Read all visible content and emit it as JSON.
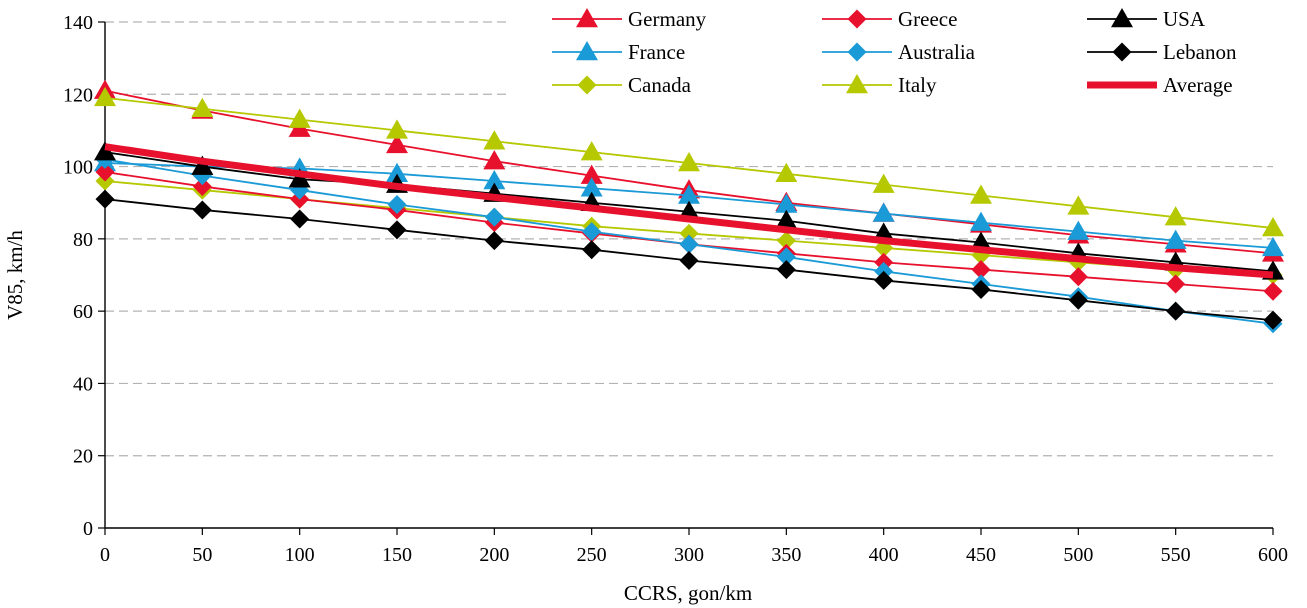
{
  "chart_data": {
    "type": "line",
    "title": "",
    "xlabel": "CCRS, gon/km",
    "ylabel": "V85, km/h",
    "xlim": [
      0,
      600
    ],
    "ylim": [
      0,
      140
    ],
    "x_ticks": [
      "0",
      "50",
      "100",
      "150",
      "200",
      "250",
      "300",
      "350",
      "400",
      "450",
      "500",
      "550",
      "600"
    ],
    "y_ticks": [
      "0",
      "20",
      "40",
      "60",
      "80",
      "100",
      "120",
      "140"
    ],
    "grid": "horizontal dashed",
    "legend_position": "top-right",
    "x": [
      0,
      50,
      100,
      150,
      200,
      250,
      300,
      350,
      400,
      450,
      500,
      550,
      600
    ],
    "series": [
      {
        "name": "Germany",
        "color": "#e8112d",
        "marker": "triangle",
        "values": [
          121,
          115.5,
          110.5,
          106,
          101.5,
          97.5,
          93.5,
          90,
          87,
          84,
          81,
          78.5,
          76
        ]
      },
      {
        "name": "France",
        "color": "#1a9ad6",
        "marker": "triangle",
        "values": [
          101,
          100,
          99.5,
          98,
          96,
          94,
          92,
          89.5,
          87,
          84.5,
          82,
          79.5,
          77.5
        ]
      },
      {
        "name": "Canada",
        "color": "#b5c800",
        "marker": "diamond",
        "values": [
          96,
          93.5,
          91,
          88.5,
          86,
          83.5,
          81.5,
          79.5,
          77.5,
          75.5,
          73.5,
          71.5,
          70
        ]
      },
      {
        "name": "Greece",
        "color": "#e8112d",
        "marker": "diamond",
        "values": [
          98.5,
          94.5,
          91,
          88,
          84.5,
          81.5,
          78.5,
          76,
          73.5,
          71.5,
          69.5,
          67.5,
          65.5
        ]
      },
      {
        "name": "Australia",
        "color": "#1a9ad6",
        "marker": "diamond",
        "values": [
          102,
          97.5,
          93.5,
          89.5,
          86,
          82,
          78.5,
          75,
          71,
          67.5,
          64,
          60,
          56.5
        ]
      },
      {
        "name": "Italy",
        "color": "#b5c800",
        "marker": "triangle",
        "values": [
          119,
          116,
          113,
          110,
          107,
          104,
          101,
          98,
          95,
          92,
          89,
          86,
          83
        ]
      },
      {
        "name": "USA",
        "color": "#000000",
        "marker": "triangle",
        "values": [
          104,
          100,
          96.5,
          95,
          92.5,
          90,
          87.5,
          85,
          81.5,
          79,
          76,
          73.5,
          71
        ]
      },
      {
        "name": "Lebanon",
        "color": "#000000",
        "marker": "diamond",
        "values": [
          91,
          88,
          85.5,
          82.5,
          79.5,
          77,
          74,
          71.5,
          68.5,
          66,
          63,
          60,
          57.5
        ]
      },
      {
        "name": "Average",
        "color": "#e8112d",
        "marker": "none",
        "thick": true,
        "values": [
          105.5,
          101.5,
          98,
          94.5,
          91.5,
          88.5,
          85.5,
          82.5,
          79.5,
          77,
          74.5,
          72,
          70
        ]
      }
    ],
    "legend_order": [
      "Germany",
      "Greece",
      "USA",
      "France",
      "Australia",
      "Lebanon",
      "Canada",
      "Italy",
      "Average"
    ]
  }
}
